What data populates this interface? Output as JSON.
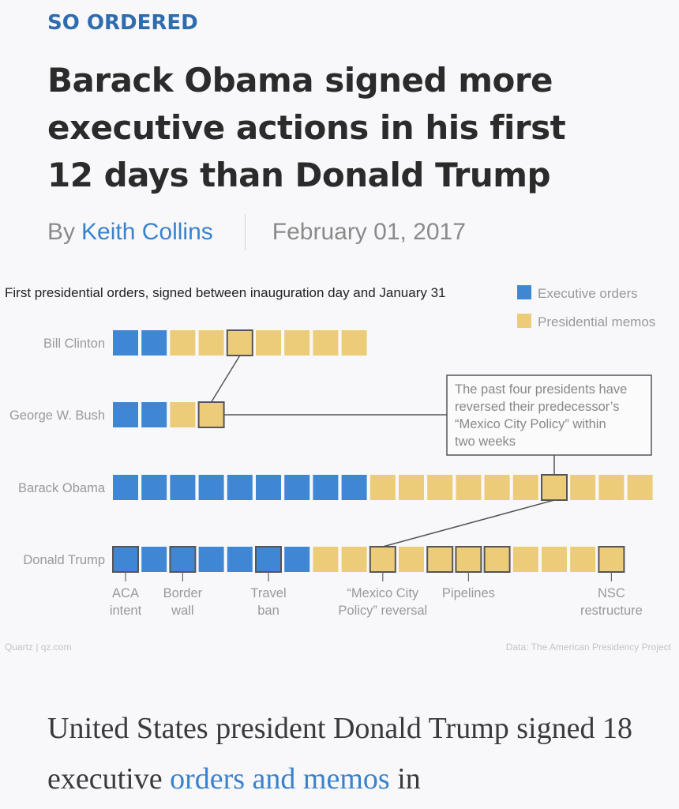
{
  "article": {
    "kicker": "SO ORDERED",
    "headline": "Barack Obama signed more executive actions in his first 12 days than Donald Trump",
    "byline_prefix": "By",
    "author": "Keith Collins",
    "date": "February 01, 2017",
    "body_before": "United States president Donald Trump signed 18 executive ",
    "body_link": "orders and memos",
    "body_after": " in"
  },
  "colors": {
    "executive_order": "#3f87d4",
    "presidential_memo": "#eccc78",
    "highlight_border": "#555555"
  },
  "chart_data": {
    "type": "table",
    "title": "First presidential orders, signed between inauguration day and January 31",
    "legend": [
      {
        "label": "Executive orders",
        "key": "executive_order"
      },
      {
        "label": "Presidential memos",
        "key": "presidential_memo"
      }
    ],
    "series": [
      {
        "name": "Bill Clinton",
        "executive_orders": 2,
        "presidential_memos": 7,
        "highlighted": [
          5
        ]
      },
      {
        "name": "George W. Bush",
        "executive_orders": 2,
        "presidential_memos": 2,
        "highlighted": [
          4
        ]
      },
      {
        "name": "Barack Obama",
        "executive_orders": 9,
        "presidential_memos": 10,
        "highlighted": [
          16
        ]
      },
      {
        "name": "Donald Trump",
        "executive_orders": 7,
        "presidential_memos": 11,
        "highlighted": [
          1,
          3,
          6,
          10,
          12,
          13,
          14,
          18
        ]
      }
    ],
    "annotation": "The past four presidents have reversed their predecessor's \"Mexico City Policy\" within two weeks",
    "labels": [
      {
        "text": "ACA intent",
        "position": 1
      },
      {
        "text": "Border wall",
        "position": 3
      },
      {
        "text": "Travel ban",
        "position": 6
      },
      {
        "text": "\"Mexico City Policy\" reversal",
        "position": 10
      },
      {
        "text": "Pipelines",
        "position": 13
      },
      {
        "text": "NSC restructure",
        "position": 18
      }
    ],
    "credit": "Quartz | qz.com",
    "source": "Data: The American Presidency Project"
  }
}
